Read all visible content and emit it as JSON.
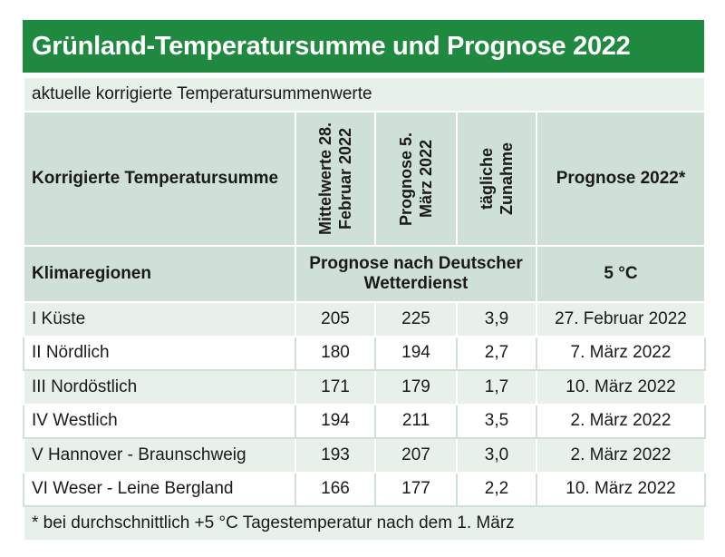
{
  "title": "Grünland-Temperatursumme und Prognose 2022",
  "subtitle": "aktuelle korrigierte Temperatursummenwerte",
  "header": {
    "col1": "Korrigierte Temperatursumme",
    "col2": "Mittelwerte 28. Februar 2022",
    "col3": "Prognose 5. März 2022",
    "col4": "tägliche Zunahme",
    "col5": "Prognose 2022*"
  },
  "subheader": {
    "col1": "Klimaregionen",
    "col2": "Prognose nach Deutscher Wetterdienst",
    "col5": "5 °C"
  },
  "rows": [
    {
      "region": "I Küste",
      "mittel": "205",
      "prognose": "225",
      "zunahme": "3,9",
      "datum": "27. Februar 2022"
    },
    {
      "region": "II Nördlich",
      "mittel": "180",
      "prognose": "194",
      "zunahme": "2,7",
      "datum": "7. März 2022"
    },
    {
      "region": "III Nordöstlich",
      "mittel": "171",
      "prognose": "179",
      "zunahme": "1,7",
      "datum": "10. März 2022"
    },
    {
      "region": "IV Westlich",
      "mittel": "194",
      "prognose": "211",
      "zunahme": "3,5",
      "datum": "2. März 2022"
    },
    {
      "region": "V Hannover - Braunschweig",
      "mittel": "193",
      "prognose": "207",
      "zunahme": "3,0",
      "datum": "2. März 2022"
    },
    {
      "region": "VI Weser - Leine Bergland",
      "mittel": "166",
      "prognose": "177",
      "zunahme": "2,2",
      "datum": "10. März 2022"
    }
  ],
  "footnote": "* bei durchschnittlich +5 °C Tagestemperatur nach dem 1. März",
  "colors": {
    "title_bg": "#1f8a3f",
    "header_bg": "#cfe0d6",
    "stripe_bg": "#e8f0ea"
  }
}
